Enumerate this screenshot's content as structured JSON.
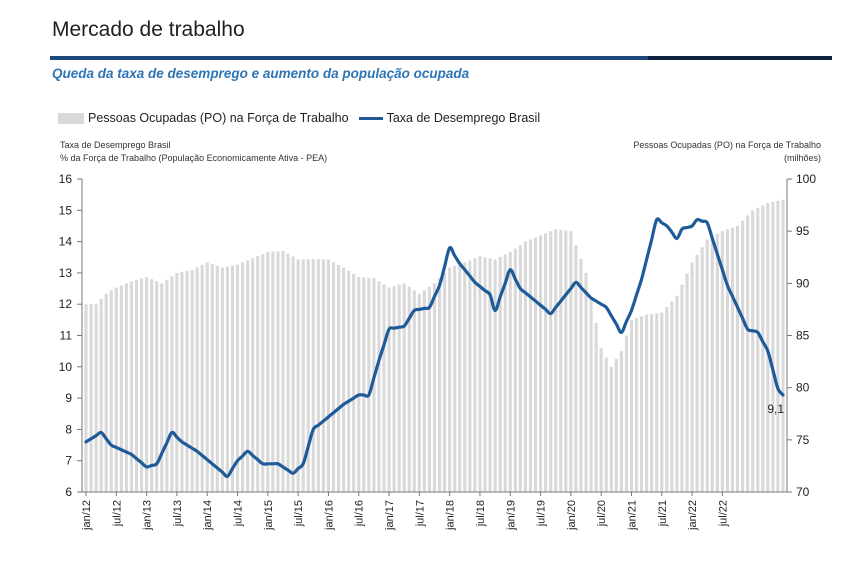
{
  "header": {
    "title": "Mercado de trabalho",
    "subtitle": "Queda da taxa de desemprego e aumento da população ocupada"
  },
  "legend": {
    "bar_label": "Pessoas Ocupadas (PO) na Força de Trabalho",
    "line_label": "Taxa de Desemprego Brasil"
  },
  "axes": {
    "left_title_1": "Taxa de Desemprego Brasil",
    "left_title_2": "% da Força de Trabalho (População Economicamente Ativa - PEA)",
    "right_title_1": "Pessoas Ocupadas (PO) na Força de Trabalho",
    "right_title_2": "(milhões)"
  },
  "chart_data": {
    "type": "bar+line",
    "x_start": "jan/12",
    "x_end": "jul/22",
    "x_ticks": [
      "jan/12",
      "jul/12",
      "jan/13",
      "jul/13",
      "jan/14",
      "jul/14",
      "jan/15",
      "jul/15",
      "jan/16",
      "jul/16",
      "jan/17",
      "jul/17",
      "jan/18",
      "jul/18",
      "jan/19",
      "jul/19",
      "jan/20",
      "jul/20",
      "jan/21",
      "jul/21",
      "jan/22",
      "jul/22"
    ],
    "y_left": {
      "min": 6,
      "max": 16,
      "ticks": [
        6,
        7,
        8,
        9,
        10,
        11,
        12,
        13,
        14,
        15,
        16
      ]
    },
    "y_right": {
      "min": 70,
      "max": 100,
      "ticks": [
        70,
        75,
        80,
        85,
        90,
        95,
        100
      ]
    },
    "colors": {
      "bars": "#d9d9d9",
      "line": "#1f5b99",
      "header_rule": "#1f497d"
    },
    "series_bars": {
      "name": "Pessoas Ocupadas (PO) na Força de Trabalho",
      "axis": "right",
      "keypoints": [
        [
          0,
          88.0
        ],
        [
          2,
          88.0
        ],
        [
          4,
          89.0
        ],
        [
          6,
          89.6
        ],
        [
          9,
          90.2
        ],
        [
          12,
          90.6
        ],
        [
          15,
          90.0
        ],
        [
          18,
          91.0
        ],
        [
          21,
          91.3
        ],
        [
          24,
          92.0
        ],
        [
          27,
          91.5
        ],
        [
          30,
          91.8
        ],
        [
          33,
          92.4
        ],
        [
          36,
          93.0
        ],
        [
          39,
          93.1
        ],
        [
          42,
          92.3
        ],
        [
          45,
          92.3
        ],
        [
          48,
          92.3
        ],
        [
          51,
          91.5
        ],
        [
          54,
          90.6
        ],
        [
          57,
          90.5
        ],
        [
          60,
          89.6
        ],
        [
          63,
          90.0
        ],
        [
          66,
          89.0
        ],
        [
          69,
          90.0
        ],
        [
          72,
          91.5
        ],
        [
          75,
          92.0
        ],
        [
          78,
          92.6
        ],
        [
          81,
          92.3
        ],
        [
          84,
          93.0
        ],
        [
          87,
          94.0
        ],
        [
          90,
          94.6
        ],
        [
          93,
          95.2
        ],
        [
          96,
          95.0
        ],
        [
          99,
          91.0
        ],
        [
          102,
          83.8
        ],
        [
          104,
          82.0
        ],
        [
          106,
          83.5
        ],
        [
          108,
          86.5
        ],
        [
          111,
          87.0
        ],
        [
          114,
          87.2
        ],
        [
          117,
          88.8
        ],
        [
          120,
          92.0
        ],
        [
          123,
          94.2
        ],
        [
          126,
          95.0
        ],
        [
          129,
          95.5
        ],
        [
          132,
          97.0
        ],
        [
          135,
          97.7
        ],
        [
          138,
          98.0
        ]
      ]
    },
    "series_line": {
      "name": "Taxa de Desemprego Brasil",
      "axis": "left",
      "keypoints": [
        [
          0,
          7.6
        ],
        [
          3,
          7.9
        ],
        [
          5,
          7.5
        ],
        [
          9,
          7.2
        ],
        [
          12,
          6.8
        ],
        [
          14,
          6.9
        ],
        [
          17,
          7.9
        ],
        [
          19,
          7.6
        ],
        [
          22,
          7.3
        ],
        [
          25,
          6.9
        ],
        [
          28,
          6.5
        ],
        [
          30,
          7.0
        ],
        [
          32,
          7.3
        ],
        [
          35,
          6.9
        ],
        [
          38,
          6.9
        ],
        [
          41,
          6.6
        ],
        [
          43,
          6.9
        ],
        [
          45,
          8.0
        ],
        [
          48,
          8.4
        ],
        [
          51,
          8.8
        ],
        [
          54,
          9.1
        ],
        [
          56,
          9.1
        ],
        [
          58,
          10.2
        ],
        [
          60,
          11.2
        ],
        [
          63,
          11.3
        ],
        [
          65,
          11.8
        ],
        [
          68,
          11.9
        ],
        [
          70,
          12.6
        ],
        [
          72,
          13.8
        ],
        [
          74,
          13.3
        ],
        [
          77,
          12.7
        ],
        [
          80,
          12.3
        ],
        [
          81,
          11.8
        ],
        [
          84,
          13.1
        ],
        [
          86,
          12.5
        ],
        [
          89,
          12.1
        ],
        [
          92,
          11.7
        ],
        [
          95,
          12.3
        ],
        [
          97,
          12.7
        ],
        [
          100,
          12.2
        ],
        [
          103,
          11.9
        ],
        [
          106,
          11.1
        ],
        [
          108,
          11.8
        ],
        [
          110,
          12.8
        ],
        [
          113,
          14.7
        ],
        [
          115,
          14.5
        ],
        [
          117,
          14.1
        ],
        [
          118,
          14.4
        ],
        [
          120,
          14.5
        ],
        [
          121,
          14.7
        ],
        [
          123,
          14.6
        ],
        [
          125,
          13.6
        ],
        [
          127,
          12.6
        ],
        [
          129,
          11.9
        ],
        [
          131,
          11.2
        ],
        [
          133,
          11.1
        ],
        [
          135,
          10.5
        ],
        [
          137,
          9.3
        ],
        [
          138,
          9.1
        ]
      ],
      "last_value_label": "9,1"
    }
  }
}
